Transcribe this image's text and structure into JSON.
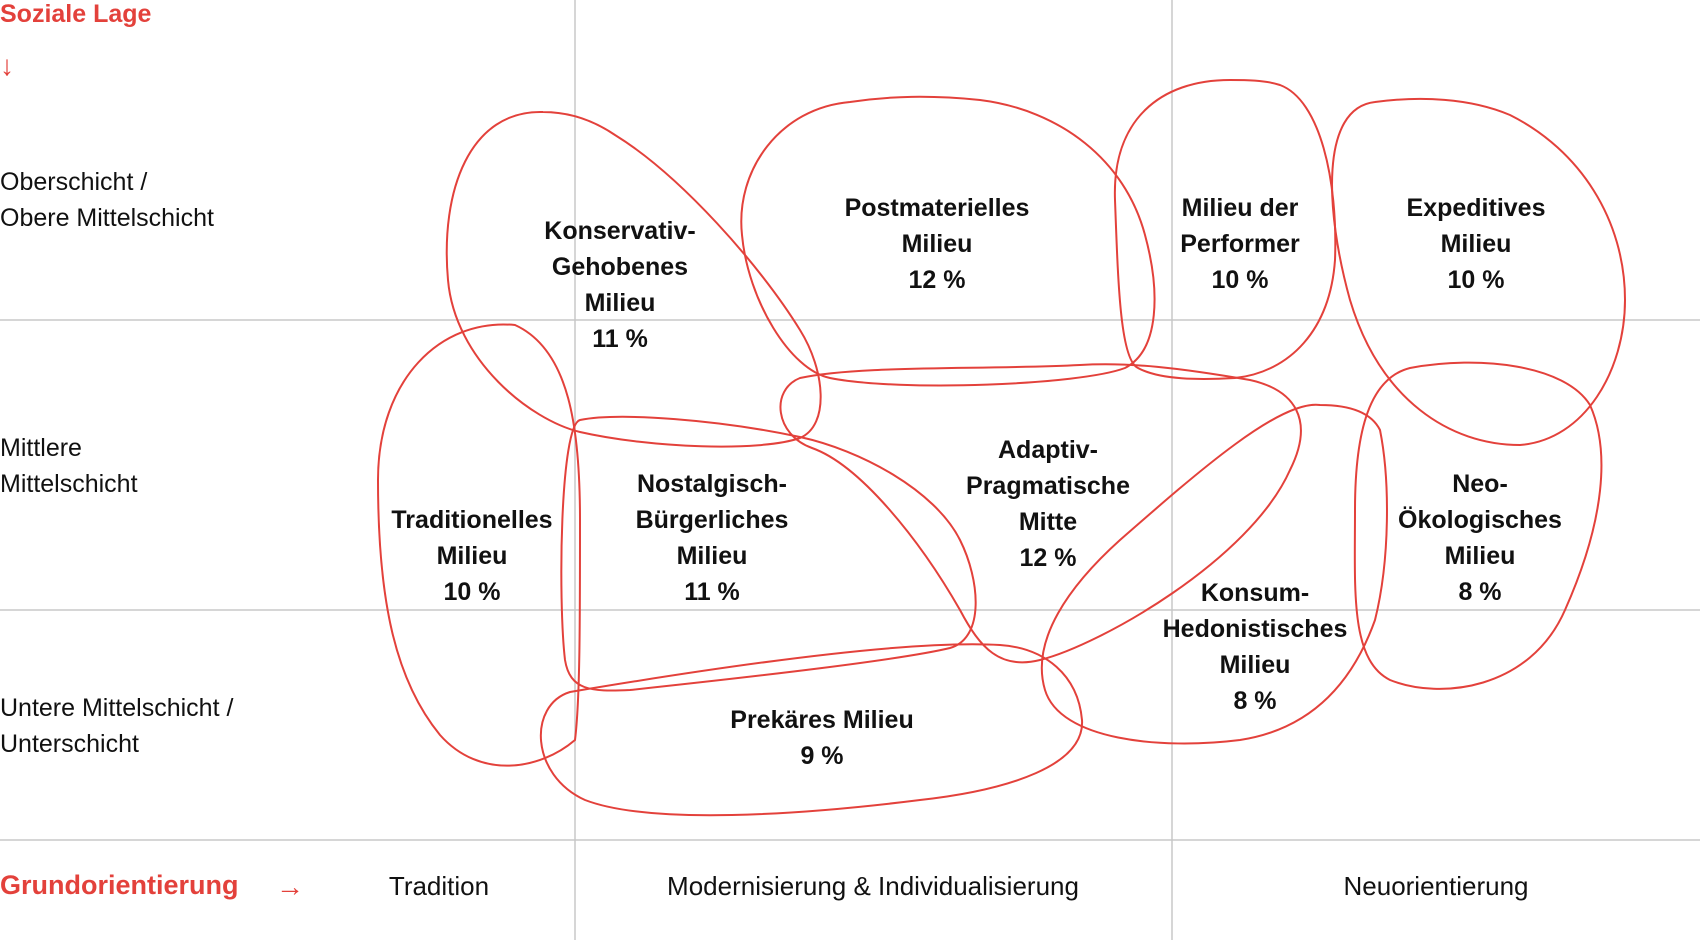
{
  "axis": {
    "y_title": "Soziale Lage",
    "y_arrow": "↓",
    "x_title": "Grundorientierung",
    "x_arrow": "→",
    "rows": [
      {
        "line1": "Oberschicht /",
        "line2": "Obere Mittelschicht"
      },
      {
        "line1": "Mittlere",
        "line2": "Mittelschicht"
      },
      {
        "line1": "Untere Mittelschicht /",
        "line2": "Unterschicht"
      }
    ],
    "columns": [
      "Tradition",
      "Modernisierung & Individualisierung",
      "Neuorientierung"
    ]
  },
  "milieus": [
    {
      "id": "konservativ",
      "lines": [
        "Konservativ-",
        "Gehobenes",
        "Milieu"
      ],
      "share": "11 %"
    },
    {
      "id": "postmateriell",
      "lines": [
        "Postmaterielles",
        "Milieu"
      ],
      "share": "12 %"
    },
    {
      "id": "performer",
      "lines": [
        "Milieu der",
        "Performer"
      ],
      "share": "10 %"
    },
    {
      "id": "expeditiv",
      "lines": [
        "Expeditives",
        "Milieu"
      ],
      "share": "10 %"
    },
    {
      "id": "traditionell",
      "lines": [
        "Traditionelles",
        "Milieu"
      ],
      "share": "10 %"
    },
    {
      "id": "nostalgisch",
      "lines": [
        "Nostalgisch-",
        "Bürgerliches",
        "Milieu"
      ],
      "share": "11 %"
    },
    {
      "id": "adaptiv",
      "lines": [
        "Adaptiv-",
        "Pragmatische",
        "Mitte"
      ],
      "share": "12 %"
    },
    {
      "id": "neooeko",
      "lines": [
        "Neo-",
        "Ökologisches",
        "Milieu"
      ],
      "share": "8 %"
    },
    {
      "id": "konsum",
      "lines": [
        "Konsum-",
        "Hedonistisches",
        "Milieu"
      ],
      "share": "8 %"
    },
    {
      "id": "prekaer",
      "lines": [
        "Prekäres Milieu"
      ],
      "share": "9 %"
    }
  ],
  "colors": {
    "accent": "#e3413b",
    "grid": "#c8c8c8",
    "text": "#111111"
  }
}
